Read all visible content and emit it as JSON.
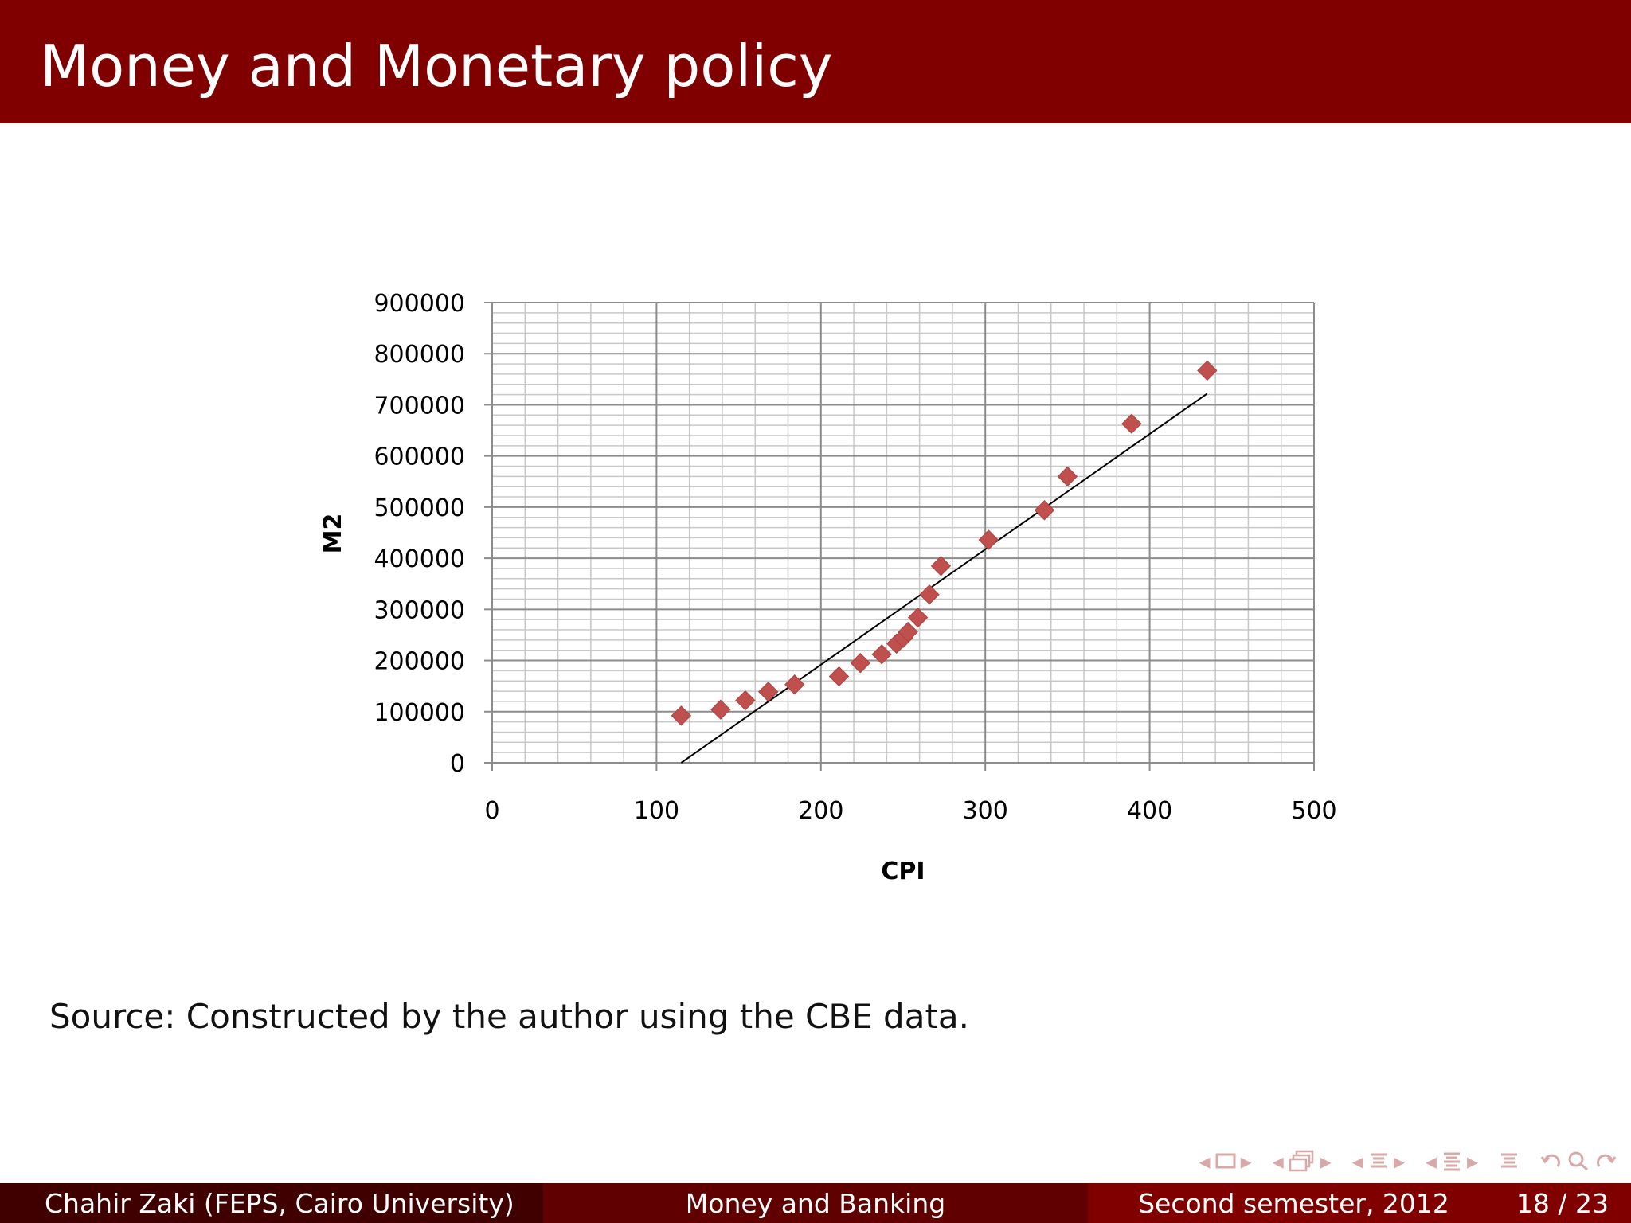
{
  "slide": {
    "title": "Money and Monetary policy",
    "source_note": "Source: Constructed by the author using the CBE data."
  },
  "footer": {
    "author": "Chahir Zaki  (FEPS, Cairo University)",
    "course": "Money and Banking",
    "date": "Second semester, 2012",
    "page": "18 / 23"
  },
  "navigation": {
    "icons": [
      "arrow-left-icon",
      "frame-icon",
      "arrow-right-icon",
      "arrow-left-icon",
      "subsection-icon",
      "arrow-right-icon",
      "arrow-left-icon",
      "section-icon",
      "arrow-right-icon",
      "arrow-left-icon",
      "section-list-icon",
      "arrow-right-icon",
      "appendix-icon",
      "back-icon",
      "search-icon",
      "zoom-icon"
    ]
  },
  "colors": {
    "title_bar": "#800000",
    "footer_left": "#400000",
    "footer_middle": "#600000",
    "footer_right": "#800000",
    "marker": "#C0504D",
    "trendline": "#000000",
    "nav_icons": "#D7A9A9"
  },
  "chart_data": {
    "type": "scatter",
    "xlabel": "CPI",
    "ylabel": "M2",
    "xlim": [
      0,
      500
    ],
    "ylim": [
      0,
      900000
    ],
    "x_major_step": 100,
    "x_minor_step": 20,
    "y_major_step": 100000,
    "y_minor_step": 20000,
    "x_ticks": [
      "0",
      "100",
      "200",
      "300",
      "400",
      "500"
    ],
    "y_ticks": [
      "0",
      "100000",
      "200000",
      "300000",
      "400000",
      "500000",
      "600000",
      "700000",
      "800000",
      "900000"
    ],
    "grid": true,
    "marker": "diamond",
    "points": [
      {
        "x": 115,
        "y": 92000
      },
      {
        "x": 139,
        "y": 104000
      },
      {
        "x": 154,
        "y": 122000
      },
      {
        "x": 168,
        "y": 139000
      },
      {
        "x": 184,
        "y": 153000
      },
      {
        "x": 211,
        "y": 169000
      },
      {
        "x": 224,
        "y": 195000
      },
      {
        "x": 237,
        "y": 212000
      },
      {
        "x": 246,
        "y": 233000
      },
      {
        "x": 250,
        "y": 244000
      },
      {
        "x": 253,
        "y": 256000
      },
      {
        "x": 259,
        "y": 284000
      },
      {
        "x": 266,
        "y": 329000
      },
      {
        "x": 273,
        "y": 385000
      },
      {
        "x": 302,
        "y": 436000
      },
      {
        "x": 336,
        "y": 494000
      },
      {
        "x": 350,
        "y": 560000
      },
      {
        "x": 389,
        "y": 663000
      },
      {
        "x": 435,
        "y": 767000
      }
    ],
    "trendline": {
      "x": [
        115,
        435
      ],
      "y": [
        0,
        722000
      ]
    }
  }
}
